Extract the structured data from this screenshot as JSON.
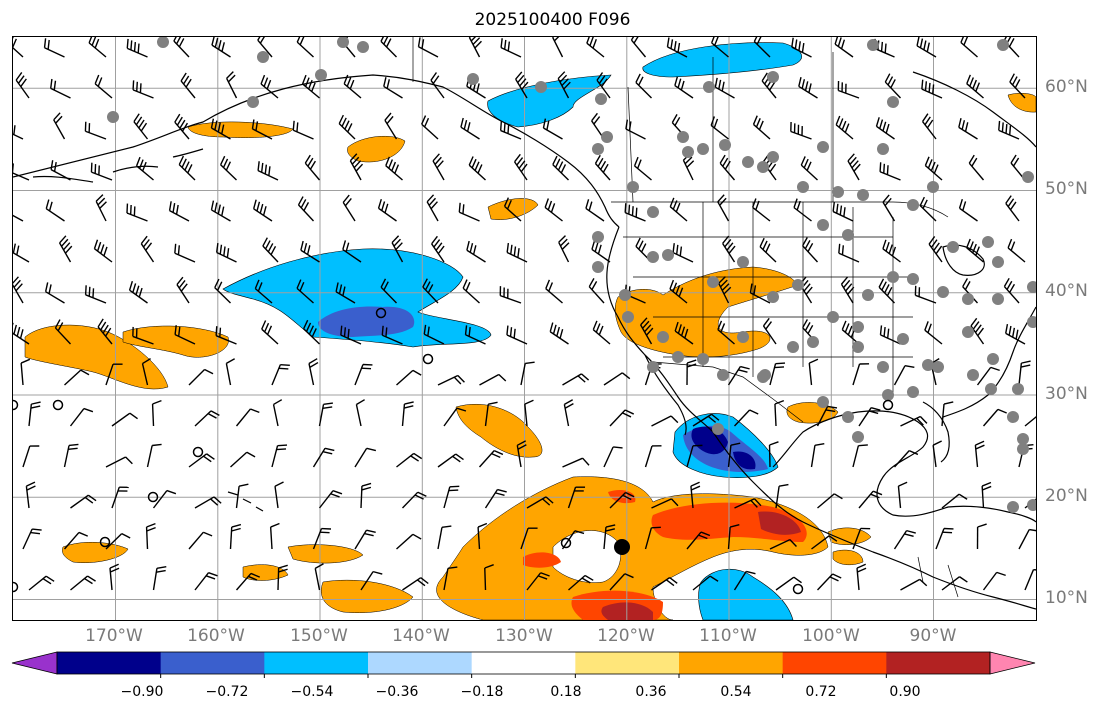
{
  "title": "2025100400 F096",
  "lat_labels": [
    "60°N",
    "50°N",
    "40°N",
    "30°N",
    "20°N",
    "10°N"
  ],
  "lon_labels": [
    "170°W",
    "160°W",
    "150°W",
    "140°W",
    "130°W",
    "120°W",
    "110°W",
    "100°W",
    "90°W"
  ],
  "colorbar": {
    "ticks": [
      "−0.90",
      "−0.72",
      "−0.54",
      "−0.36",
      "−0.18",
      "0.18",
      "0.36",
      "0.54",
      "0.72",
      "0.90"
    ],
    "colors": [
      "#9932cc",
      "#00008b",
      "#3a5fcd",
      "#00bfff",
      "#add8ff",
      "#ffffff",
      "#ffe67a",
      "#ffa500",
      "#ff4500",
      "#b22222",
      "#ff85b0"
    ]
  },
  "colors": {
    "land_line": "#000000",
    "grid": "#a0a0a0",
    "station": "#808080"
  }
}
